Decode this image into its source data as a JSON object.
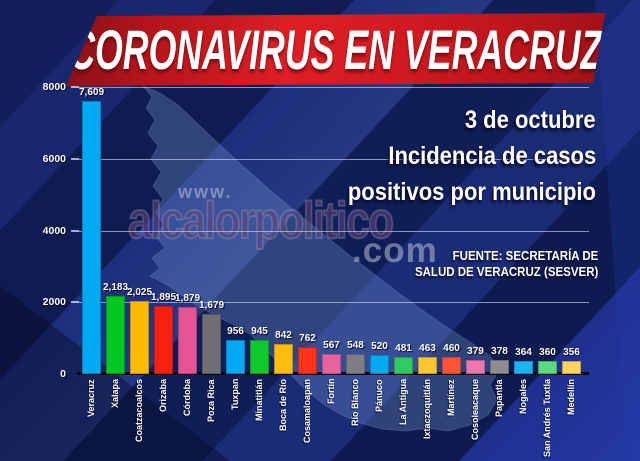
{
  "banner": {
    "title": "CORONAVIRUS EN VERACRUZ",
    "bg_color": "#d0151c"
  },
  "subtitle": {
    "date": "3 de octubre",
    "line1": "Incidencia de casos",
    "line2": "positivos por municipio"
  },
  "source": {
    "line1": "FUENTE: SECRETARÍA DE",
    "line2": "SALUD DE VERACRUZ (SESVER)"
  },
  "watermark": {
    "prefix": "www.",
    "name": "alcalorpolitico",
    "suffix": ".com"
  },
  "chart_data": {
    "type": "bar",
    "title": "Incidencia de casos positivos por municipio - 3 de octubre",
    "xlabel": "",
    "ylabel": "",
    "ylim": [
      0,
      8000
    ],
    "yticks": [
      8000,
      6000,
      4000,
      2000,
      0
    ],
    "ytick_labels": [
      "8000",
      "6000",
      "4000",
      "2000",
      "0"
    ],
    "grid": true,
    "legend": "none",
    "categories": [
      "Veracruz",
      "Xalapa",
      "Coatzacoalcos",
      "Orizaba",
      "Córdoba",
      "Poza Rica",
      "Tuxpan",
      "Minatitlán",
      "Boca de Río",
      "Cosamaloapan",
      "Fortín",
      "Río Blanco",
      "Pánuco",
      "La Antigua",
      "Ixtaczoquitlán",
      "Martínez",
      "Cosoleacaque",
      "Papantla",
      "Nogales",
      "San Andrés Tuxtla",
      "Medellín"
    ],
    "values": [
      7609,
      2183,
      2025,
      1895,
      1879,
      1679,
      956,
      945,
      842,
      762,
      567,
      548,
      520,
      481,
      463,
      460,
      379,
      378,
      364,
      360,
      356
    ],
    "value_labels": [
      "7,609",
      "2,183",
      "2,025",
      "1,895",
      "1,879",
      "1,679",
      "956",
      "945",
      "842",
      "762",
      "567",
      "548",
      "520",
      "481",
      "463",
      "460",
      "379",
      "378",
      "364",
      "360",
      "356"
    ],
    "bar_colors": [
      "#00aaf0",
      "#00c81e",
      "#ffbb00",
      "#f8210f",
      "#e65393",
      "#707074",
      "#00aaf0",
      "#10c82a",
      "#ffbe0d",
      "#ff3318",
      "#e8639e",
      "#7e7e82",
      "#00aaf0",
      "#2ecc5e",
      "#ffc62e",
      "#ff5536",
      "#eb77ae",
      "#8e8e92",
      "#18b4f0",
      "#58dc7a",
      "#ffd45e"
    ]
  }
}
